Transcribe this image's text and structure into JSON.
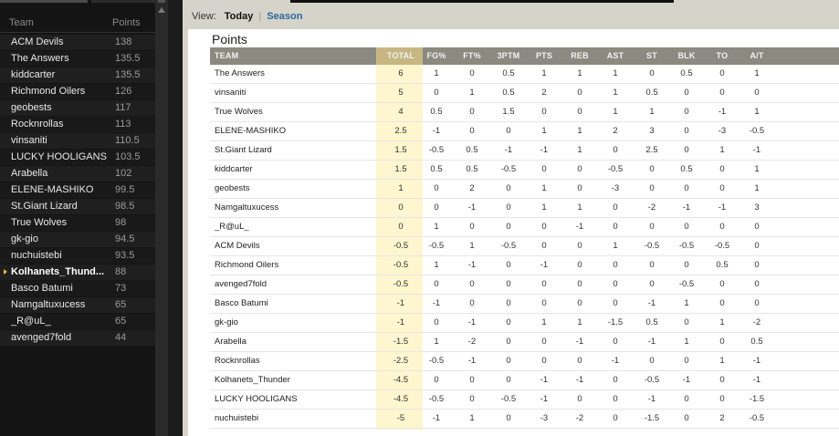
{
  "sidebar": {
    "header_team": "Team",
    "header_points": "Points",
    "standings": [
      {
        "name": "ACM Devils",
        "points": "138"
      },
      {
        "name": "The Answers",
        "points": "135.5"
      },
      {
        "name": "kiddcarter",
        "points": "135.5"
      },
      {
        "name": "Richmond Oilers",
        "points": "126"
      },
      {
        "name": "geobests",
        "points": "117"
      },
      {
        "name": "Rocknrollas",
        "points": "113"
      },
      {
        "name": "vinsaniti",
        "points": "110.5"
      },
      {
        "name": "LUCKY HOOLIGANS",
        "points": "103.5"
      },
      {
        "name": "Arabella",
        "points": "102"
      },
      {
        "name": "ELENE-MASHIKO",
        "points": "99.5"
      },
      {
        "name": "St.Giant Lizard",
        "points": "98.5"
      },
      {
        "name": "True Wolves",
        "points": "98"
      },
      {
        "name": "gk-gio",
        "points": "94.5"
      },
      {
        "name": "nuchuistebi",
        "points": "93.5"
      },
      {
        "name": "Kolhanets_Thund...",
        "points": "88",
        "current": true
      },
      {
        "name": "Basco Batumi",
        "points": "73"
      },
      {
        "name": "Namgaltuxucess",
        "points": "65"
      },
      {
        "name": "_R@uL_",
        "points": "65"
      },
      {
        "name": "avenged7fold",
        "points": "44"
      }
    ]
  },
  "view": {
    "label": "View:",
    "today": "Today",
    "separator": "|",
    "season": "Season"
  },
  "panel": {
    "title": "Points",
    "columns": [
      "TEAM",
      "TOTAL",
      "FG%",
      "FT%",
      "3PTM",
      "PTS",
      "REB",
      "AST",
      "ST",
      "BLK",
      "TO",
      "A/T"
    ],
    "rows": [
      [
        "The Answers",
        "6",
        "1",
        "0",
        "0.5",
        "1",
        "1",
        "1",
        "0",
        "0.5",
        "0",
        "1"
      ],
      [
        "vinsaniti",
        "5",
        "0",
        "1",
        "0.5",
        "2",
        "0",
        "1",
        "0.5",
        "0",
        "0",
        "0"
      ],
      [
        "True Wolves",
        "4",
        "0.5",
        "0",
        "1.5",
        "0",
        "0",
        "1",
        "1",
        "0",
        "-1",
        "1"
      ],
      [
        "ELENE-MASHIKO",
        "2.5",
        "-1",
        "0",
        "0",
        "1",
        "1",
        "2",
        "3",
        "0",
        "-3",
        "-0.5"
      ],
      [
        "St.Giant Lizard",
        "1.5",
        "-0.5",
        "0.5",
        "-1",
        "-1",
        "1",
        "0",
        "2.5",
        "0",
        "1",
        "-1"
      ],
      [
        "kiddcarter",
        "1.5",
        "0.5",
        "0.5",
        "-0.5",
        "0",
        "0",
        "-0.5",
        "0",
        "0.5",
        "0",
        "1"
      ],
      [
        "geobests",
        "1",
        "0",
        "2",
        "0",
        "1",
        "0",
        "-3",
        "0",
        "0",
        "0",
        "1"
      ],
      [
        "Namgaltuxucess",
        "0",
        "0",
        "-1",
        "0",
        "1",
        "1",
        "0",
        "-2",
        "-1",
        "-1",
        "3"
      ],
      [
        "_R@uL_",
        "0",
        "1",
        "0",
        "0",
        "0",
        "-1",
        "0",
        "0",
        "0",
        "0",
        "0"
      ],
      [
        "ACM Devils",
        "-0.5",
        "-0.5",
        "1",
        "-0.5",
        "0",
        "0",
        "1",
        "-0.5",
        "-0.5",
        "-0.5",
        "0"
      ],
      [
        "Richmond Oilers",
        "-0.5",
        "1",
        "-1",
        "0",
        "-1",
        "0",
        "0",
        "0",
        "0",
        "0.5",
        "0"
      ],
      [
        "avenged7fold",
        "-0.5",
        "0",
        "0",
        "0",
        "0",
        "0",
        "0",
        "0",
        "-0.5",
        "0",
        "0"
      ],
      [
        "Basco Batumi",
        "-1",
        "-1",
        "0",
        "0",
        "0",
        "0",
        "0",
        "-1",
        "1",
        "0",
        "0"
      ],
      [
        "gk-gio",
        "-1",
        "0",
        "-1",
        "0",
        "1",
        "1",
        "-1.5",
        "0.5",
        "0",
        "1",
        "-2"
      ],
      [
        "Arabella",
        "-1.5",
        "1",
        "-2",
        "0",
        "0",
        "-1",
        "0",
        "-1",
        "1",
        "0",
        "0.5"
      ],
      [
        "Rocknrollas",
        "-2.5",
        "-0.5",
        "-1",
        "0",
        "0",
        "0",
        "-1",
        "0",
        "0",
        "1",
        "-1"
      ],
      [
        "Kolhanets_Thunder",
        "-4.5",
        "0",
        "0",
        "0",
        "-1",
        "-1",
        "0",
        "-0.5",
        "-1",
        "0",
        "-1"
      ],
      [
        "LUCKY HOOLIGANS",
        "-4.5",
        "-0.5",
        "0",
        "-0.5",
        "-1",
        "0",
        "0",
        "-1",
        "0",
        "0",
        "-1.5"
      ],
      [
        "nuchuistebi",
        "-5",
        "-1",
        "1",
        "0",
        "-3",
        "-2",
        "0",
        "-1.5",
        "0",
        "2",
        "-0.5"
      ]
    ]
  },
  "colors": {
    "accent_link": "#2b6a9e",
    "total_highlight": "#fdf6cf",
    "header_bar": "#8a8a80",
    "current_marker": "#e6b43c"
  }
}
